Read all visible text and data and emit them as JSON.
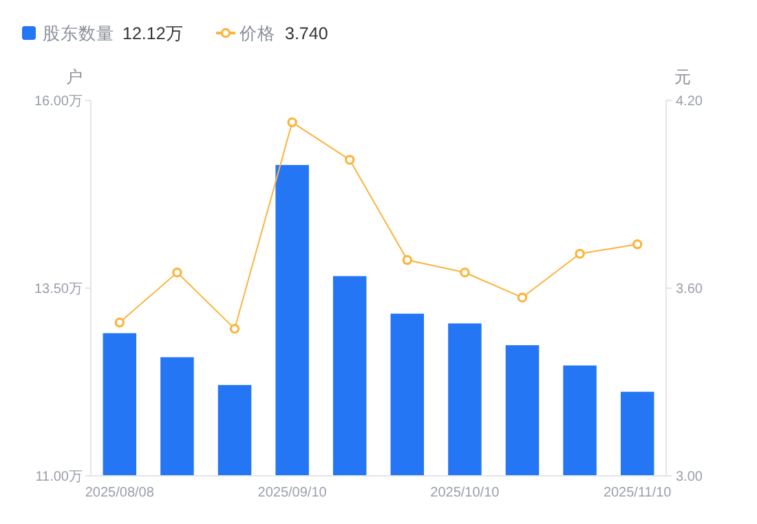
{
  "chart_data": {
    "type": "bar",
    "categories": [
      "2025/08/08",
      null,
      null,
      "2025/09/10",
      null,
      null,
      "2025/10/10",
      null,
      null,
      "2025/11/10"
    ],
    "series": [
      {
        "name": "股东数量",
        "color": "#2476f5",
        "values": [
          12.9,
          12.58,
          12.21,
          15.14,
          13.66,
          13.16,
          13.03,
          12.74,
          12.47,
          12.12
        ]
      },
      {
        "name": "价格",
        "type": "line",
        "axis": "y2",
        "color": "#fbb43c",
        "marker": "circle",
        "values": [
          3.49,
          3.65,
          3.47,
          4.13,
          4.01,
          3.69,
          3.65,
          3.57,
          3.71,
          3.74
        ]
      }
    ],
    "annotations": [
      "12.12万",
      "3.740"
    ],
    "ylabel": "户",
    "y2label": "元",
    "ylim": [
      11,
      16
    ],
    "yticks": [
      {
        "value": 11,
        "label": "11.00万"
      },
      {
        "value": 13.5,
        "label": "13.50万"
      },
      {
        "value": 16,
        "label": "16.00万"
      }
    ],
    "y2lim": [
      3,
      4.2
    ],
    "y2ticks": [
      {
        "value": 3,
        "label": "3.00"
      },
      {
        "value": 3.6,
        "label": "3.60"
      },
      {
        "value": 4.2,
        "label": "4.20"
      }
    ],
    "legend": "top left"
  }
}
